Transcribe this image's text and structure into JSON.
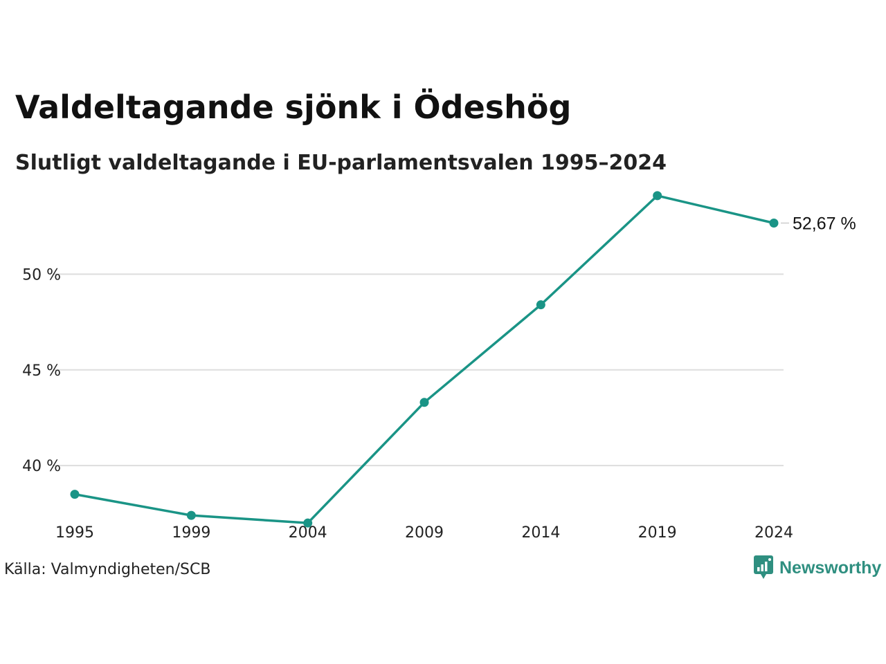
{
  "title": "Valdeltagande sjönk i Ödeshög",
  "subtitle": "Slutligt valdeltagande i EU-parlamentsvalen 1995–2024",
  "source": "Källa: Valmyndigheten/SCB",
  "brand": {
    "name": "Newsworthy",
    "icon": "newsworthy-logo-icon"
  },
  "colors": {
    "line": "#1a9486",
    "grid": "#dddddd",
    "text": "#111111",
    "brand": "#2f8f80"
  },
  "chart_data": {
    "type": "line",
    "x": [
      "1995",
      "1999",
      "2004",
      "2009",
      "2014",
      "2019",
      "2024"
    ],
    "series": [
      {
        "values": [
          38.5,
          37.4,
          37.0,
          43.3,
          48.4,
          54.1,
          52.67
        ]
      }
    ],
    "ylim": [
      36.5,
      55
    ],
    "yticks": [
      40,
      45,
      50
    ],
    "ytick_labels": [
      "40 %",
      "45 %",
      "50 %"
    ],
    "grid": true,
    "end_label": "52,67 %"
  }
}
